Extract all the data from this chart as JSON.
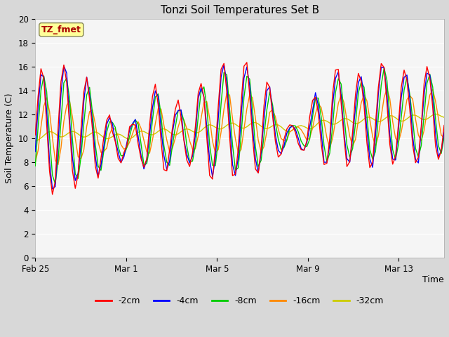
{
  "title": "Tonzi Soil Temperatures Set B",
  "xlabel": "Time",
  "ylabel": "Soil Temperature (C)",
  "annotation": "TZ_fmet",
  "ylim": [
    0,
    20
  ],
  "yticks": [
    0,
    2,
    4,
    6,
    8,
    10,
    12,
    14,
    16,
    18,
    20
  ],
  "xtick_labels": [
    "Feb 25",
    "Mar 1",
    "Mar 5",
    "Mar 9",
    "Mar 13"
  ],
  "xtick_positions": [
    0,
    4,
    8,
    12,
    16
  ],
  "n_days": 18,
  "legend_labels": [
    "-2cm",
    "-4cm",
    "-8cm",
    "-16cm",
    "-32cm"
  ],
  "line_colors": [
    "#ff0000",
    "#0000ff",
    "#00cc00",
    "#ff8800",
    "#cccc00"
  ],
  "fig_bg_color": "#e8e8e8",
  "plot_bg_color": "#e0e0e0",
  "white_bg_color": "#f5f5f5",
  "grid_color": "#ffffff",
  "annotation_bg": "#ffff99",
  "annotation_border": "#888855",
  "annotation_text_color": "#aa0000",
  "fig_width": 6.4,
  "fig_height": 4.8,
  "dpi": 100
}
